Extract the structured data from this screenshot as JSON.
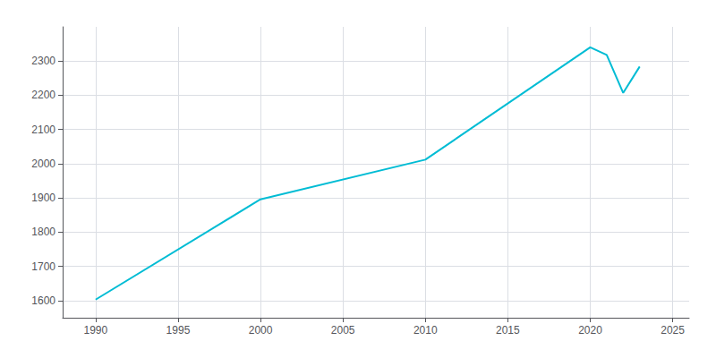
{
  "chart_data": {
    "type": "line",
    "x": [
      1990,
      2000,
      2010,
      2020,
      2021,
      2022,
      2023
    ],
    "values": [
      1603,
      1896,
      2012,
      2340,
      2318,
      2207,
      2284
    ],
    "color": "#00bcd4",
    "xlim": [
      1988,
      2026
    ],
    "xticks": [
      1990,
      1995,
      2000,
      2005,
      2010,
      2015,
      2020,
      2025
    ],
    "ylim": [
      1550,
      2400
    ],
    "yticks": [
      1600,
      1700,
      1800,
      1900,
      2000,
      2100,
      2200,
      2300
    ],
    "grid": true
  }
}
